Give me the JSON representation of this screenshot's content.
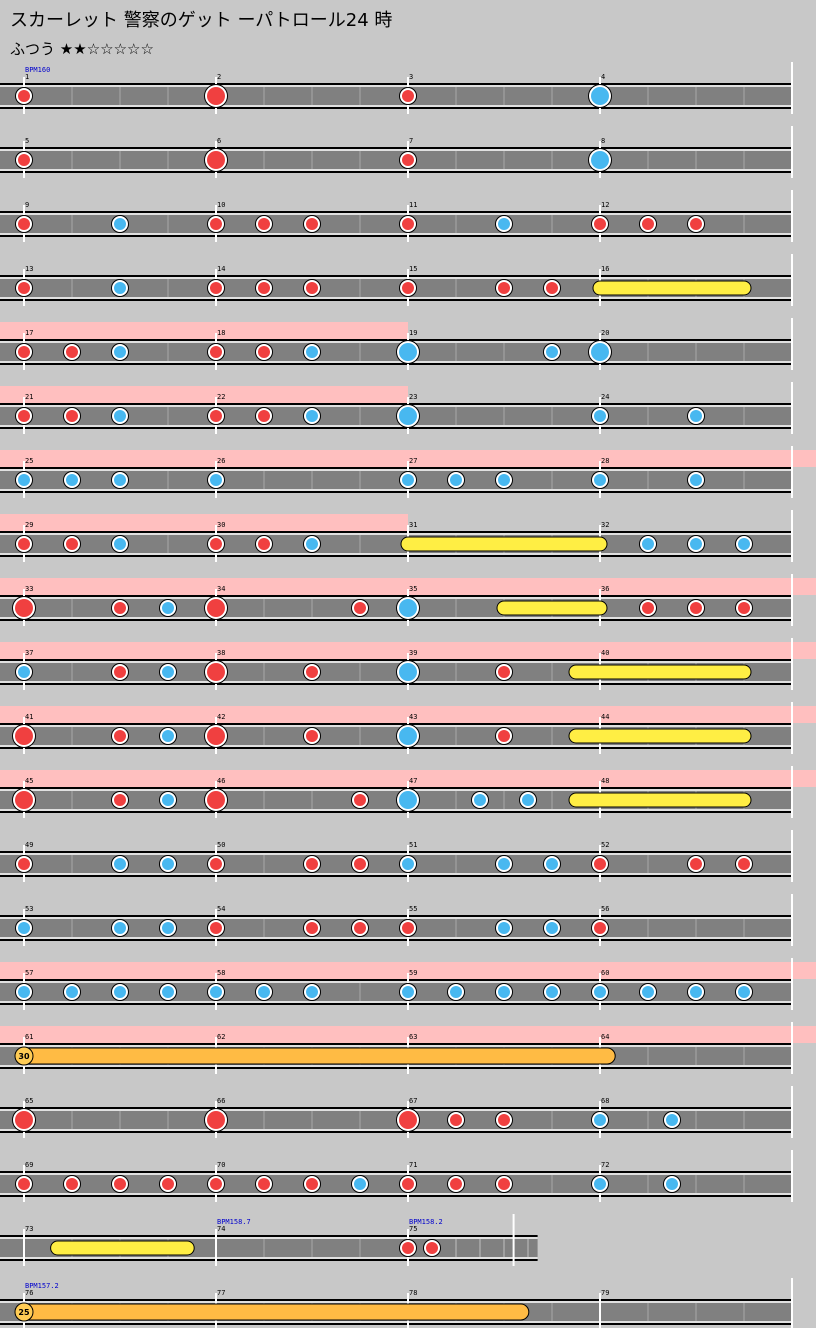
{
  "song": {
    "title": "スカーレット 警察のゲット ーパトロール24 時",
    "difficulty_label": "ふつう",
    "stars": "★★☆☆☆☆☆"
  },
  "colors": {
    "don": "#f04040",
    "ka": "#48b8f0",
    "drumroll": "#ffee44",
    "balloon": "#ffbb44",
    "gogo": "#ffbfbf",
    "lane": "#808080",
    "background": "#c8c8c8"
  },
  "chart_data": {
    "type": "taiko-chart",
    "beats_per_measure": 4,
    "legend": "d=don, D=big don, k=ka, K=big ka, R=drumroll (start,end in beats), B=balloon",
    "bpm_markers": [
      {
        "measure": 1,
        "beat": 0,
        "label": "BPM160"
      },
      {
        "measure": 74,
        "beat": 0,
        "label": "BPM158.7"
      },
      {
        "measure": 75,
        "beat": 0,
        "label": "BPM158.2"
      },
      {
        "measure": 76,
        "beat": 0,
        "label": "BPM157.2"
      }
    ],
    "rows": [
      {
        "measures": [
          1,
          2,
          3,
          4
        ],
        "beats": 16,
        "gogo": [],
        "notes": [
          [
            0,
            "d"
          ],
          [
            4,
            "D"
          ],
          [
            8,
            "d"
          ],
          [
            12,
            "K"
          ]
        ]
      },
      {
        "measures": [
          5,
          6,
          7,
          8
        ],
        "beats": 16,
        "gogo": [],
        "notes": [
          [
            0,
            "d"
          ],
          [
            4,
            "D"
          ],
          [
            8,
            "d"
          ],
          [
            12,
            "K"
          ]
        ]
      },
      {
        "measures": [
          9,
          10,
          11,
          12
        ],
        "beats": 16,
        "gogo": [],
        "notes": [
          [
            0,
            "d"
          ],
          [
            2,
            "k"
          ],
          [
            4,
            "d"
          ],
          [
            5,
            "d"
          ],
          [
            6,
            "d"
          ],
          [
            8,
            "d"
          ],
          [
            10,
            "k"
          ],
          [
            12,
            "d"
          ],
          [
            13,
            "d"
          ],
          [
            14,
            "d"
          ]
        ]
      },
      {
        "measures": [
          13,
          14,
          15,
          16
        ],
        "beats": 16,
        "gogo": [],
        "notes": [
          [
            0,
            "d"
          ],
          [
            2,
            "k"
          ],
          [
            4,
            "d"
          ],
          [
            5,
            "d"
          ],
          [
            6,
            "d"
          ],
          [
            8,
            "d"
          ],
          [
            10,
            "d"
          ],
          [
            11,
            "d"
          ],
          [
            12,
            "R",
            15
          ]
        ]
      },
      {
        "measures": [
          17,
          18,
          19,
          20
        ],
        "beats": 16,
        "gogo": [
          [
            0,
            8
          ]
        ],
        "notes": [
          [
            0,
            "d"
          ],
          [
            1,
            "d"
          ],
          [
            2,
            "k"
          ],
          [
            4,
            "d"
          ],
          [
            5,
            "d"
          ],
          [
            6,
            "k"
          ],
          [
            8,
            "K"
          ],
          [
            11,
            "k"
          ],
          [
            12,
            "K"
          ]
        ]
      },
      {
        "measures": [
          21,
          22,
          23,
          24
        ],
        "beats": 16,
        "gogo": [
          [
            0,
            8
          ]
        ],
        "notes": [
          [
            0,
            "d"
          ],
          [
            1,
            "d"
          ],
          [
            2,
            "k"
          ],
          [
            4,
            "d"
          ],
          [
            5,
            "d"
          ],
          [
            6,
            "k"
          ],
          [
            8,
            "K"
          ],
          [
            12,
            "k"
          ],
          [
            14,
            "k"
          ]
        ]
      },
      {
        "measures": [
          25,
          26,
          27,
          28
        ],
        "beats": 16,
        "gogo": [
          [
            0,
            17
          ]
        ],
        "notes": [
          [
            0,
            "k"
          ],
          [
            1,
            "k"
          ],
          [
            2,
            "k"
          ],
          [
            4,
            "k"
          ],
          [
            8,
            "k"
          ],
          [
            9,
            "k"
          ],
          [
            10,
            "k"
          ],
          [
            12,
            "k"
          ],
          [
            14,
            "k"
          ]
        ]
      },
      {
        "measures": [
          29,
          30,
          31,
          32
        ],
        "beats": 16,
        "gogo": [
          [
            0,
            8
          ]
        ],
        "notes": [
          [
            0,
            "d"
          ],
          [
            1,
            "d"
          ],
          [
            2,
            "k"
          ],
          [
            4,
            "d"
          ],
          [
            5,
            "d"
          ],
          [
            6,
            "k"
          ],
          [
            8,
            "R",
            12
          ],
          [
            13,
            "k"
          ],
          [
            14,
            "k"
          ],
          [
            15,
            "k"
          ]
        ]
      },
      {
        "measures": [
          33,
          34,
          35,
          36
        ],
        "beats": 16,
        "gogo": [
          [
            0,
            17
          ]
        ],
        "notes": [
          [
            0,
            "D"
          ],
          [
            2,
            "d"
          ],
          [
            3,
            "k"
          ],
          [
            4,
            "D"
          ],
          [
            7,
            "d"
          ],
          [
            8,
            "K"
          ],
          [
            10,
            "R",
            12
          ],
          [
            13,
            "d"
          ],
          [
            14,
            "d"
          ],
          [
            15,
            "d"
          ]
        ]
      },
      {
        "measures": [
          37,
          38,
          39,
          40
        ],
        "beats": 16,
        "gogo": [
          [
            0,
            17
          ]
        ],
        "notes": [
          [
            0,
            "k"
          ],
          [
            2,
            "d"
          ],
          [
            3,
            "k"
          ],
          [
            4,
            "D"
          ],
          [
            6,
            "d"
          ],
          [
            8,
            "K"
          ],
          [
            10,
            "d"
          ],
          [
            11.5,
            "R",
            15
          ]
        ]
      },
      {
        "measures": [
          41,
          42,
          43,
          44
        ],
        "beats": 16,
        "gogo": [
          [
            0,
            17
          ]
        ],
        "notes": [
          [
            0,
            "D"
          ],
          [
            2,
            "d"
          ],
          [
            3,
            "k"
          ],
          [
            4,
            "D"
          ],
          [
            6,
            "d"
          ],
          [
            8,
            "K"
          ],
          [
            10,
            "d"
          ],
          [
            11.5,
            "R",
            15
          ]
        ]
      },
      {
        "measures": [
          45,
          46,
          47,
          48
        ],
        "beats": 16,
        "gogo": [
          [
            0,
            17
          ]
        ],
        "notes": [
          [
            0,
            "D"
          ],
          [
            2,
            "d"
          ],
          [
            3,
            "k"
          ],
          [
            4,
            "D"
          ],
          [
            7,
            "d"
          ],
          [
            8,
            "K"
          ],
          [
            9.5,
            "k"
          ],
          [
            10.5,
            "k"
          ],
          [
            11.5,
            "R",
            15
          ]
        ]
      },
      {
        "measures": [
          49,
          50,
          51,
          52
        ],
        "beats": 16,
        "gogo": [],
        "notes": [
          [
            0,
            "d"
          ],
          [
            2,
            "k"
          ],
          [
            3,
            "k"
          ],
          [
            4,
            "d"
          ],
          [
            6,
            "d"
          ],
          [
            7,
            "d"
          ],
          [
            8,
            "k"
          ],
          [
            10,
            "k"
          ],
          [
            11,
            "k"
          ],
          [
            12,
            "d"
          ],
          [
            14,
            "d"
          ],
          [
            15,
            "d"
          ]
        ]
      },
      {
        "measures": [
          53,
          54,
          55,
          56
        ],
        "beats": 16,
        "gogo": [],
        "notes": [
          [
            0,
            "k"
          ],
          [
            2,
            "k"
          ],
          [
            3,
            "k"
          ],
          [
            4,
            "d"
          ],
          [
            6,
            "d"
          ],
          [
            7,
            "d"
          ],
          [
            8,
            "d"
          ],
          [
            10,
            "k"
          ],
          [
            11,
            "k"
          ],
          [
            12,
            "d"
          ]
        ]
      },
      {
        "measures": [
          57,
          58,
          59,
          60
        ],
        "beats": 16,
        "gogo": [
          [
            0,
            17
          ]
        ],
        "notes": [
          [
            0,
            "k"
          ],
          [
            1,
            "k"
          ],
          [
            2,
            "k"
          ],
          [
            3,
            "k"
          ],
          [
            4,
            "k"
          ],
          [
            5,
            "k"
          ],
          [
            6,
            "k"
          ],
          [
            8,
            "k"
          ],
          [
            9,
            "k"
          ],
          [
            10,
            "k"
          ],
          [
            11,
            "k"
          ],
          [
            12,
            "k"
          ],
          [
            13,
            "k"
          ],
          [
            14,
            "k"
          ],
          [
            15,
            "k"
          ]
        ]
      },
      {
        "measures": [
          61,
          62,
          63,
          64
        ],
        "beats": 16,
        "gogo": [
          [
            0,
            17
          ]
        ],
        "notes": [
          [
            0,
            "B",
            12.15,
            "30"
          ]
        ]
      },
      {
        "measures": [
          65,
          66,
          67,
          68
        ],
        "beats": 16,
        "gogo": [],
        "notes": [
          [
            0,
            "D"
          ],
          [
            4,
            "D"
          ],
          [
            8,
            "D"
          ],
          [
            9,
            "d"
          ],
          [
            10,
            "d"
          ],
          [
            12,
            "k"
          ],
          [
            13.5,
            "k"
          ]
        ]
      },
      {
        "measures": [
          69,
          70,
          71,
          72
        ],
        "beats": 16,
        "gogo": [],
        "notes": [
          [
            0,
            "d"
          ],
          [
            1,
            "d"
          ],
          [
            2,
            "d"
          ],
          [
            3,
            "d"
          ],
          [
            4,
            "d"
          ],
          [
            5,
            "d"
          ],
          [
            6,
            "d"
          ],
          [
            7,
            "k"
          ],
          [
            8,
            "d"
          ],
          [
            9,
            "d"
          ],
          [
            10,
            "d"
          ],
          [
            12,
            "k"
          ],
          [
            13.5,
            "k"
          ]
        ]
      },
      {
        "measures": [
          73,
          74,
          75
        ],
        "beats": 10.7,
        "gogo": [],
        "notes": [
          [
            0.7,
            "R",
            3.4
          ],
          [
            8,
            "d"
          ],
          [
            8.5,
            "d"
          ]
        ]
      },
      {
        "measures": [
          76,
          77,
          78,
          79
        ],
        "beats": 16,
        "gogo": [],
        "notes": [
          [
            0,
            "B",
            10.35,
            "25"
          ]
        ]
      }
    ]
  }
}
